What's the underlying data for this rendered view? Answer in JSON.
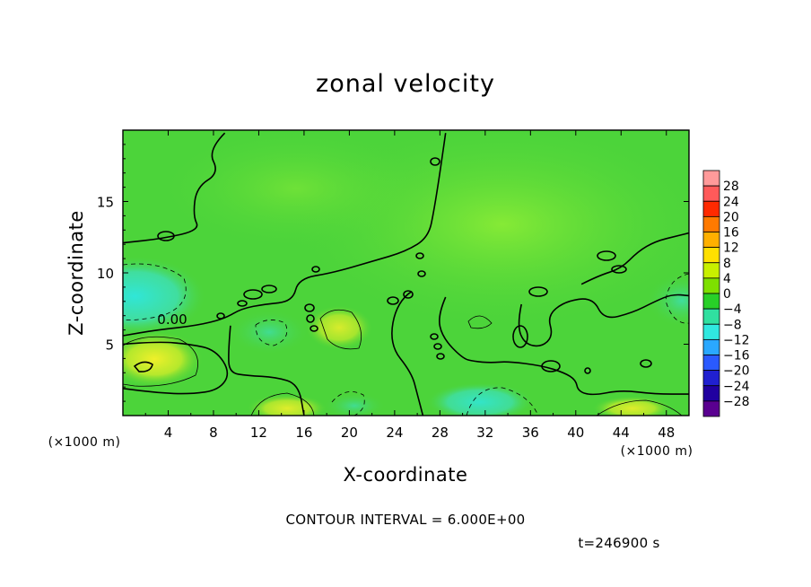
{
  "chart_data": {
    "type": "heatmap",
    "title": "zonal velocity",
    "xlabel": "X-coordinate",
    "ylabel": "Z-coordinate",
    "x_unit_label": "(×1000 m)",
    "y_unit_label": "(×1000 m)",
    "xlim": [
      0,
      50
    ],
    "ylim": [
      0,
      20
    ],
    "x_ticks": [
      4,
      8,
      12,
      16,
      20,
      24,
      28,
      32,
      36,
      40,
      44,
      48
    ],
    "y_ticks": [
      5,
      10,
      15
    ],
    "contour_interval_text": "CONTOUR INTERVAL = 6.000E+00",
    "zero_contour_label": "0.00",
    "time_text": "t=246900 s",
    "colorbar": {
      "levels": [
        28,
        24,
        20,
        16,
        12,
        8,
        4,
        0,
        -4,
        -8,
        -12,
        -16,
        -20,
        -24,
        -28
      ],
      "colors": [
        "#ff9a9a",
        "#ff5a5a",
        "#ff2a00",
        "#ff7a00",
        "#ffb000",
        "#ffe000",
        "#c8f000",
        "#7ee000",
        "#28d028",
        "#30e0a0",
        "#30e8e0",
        "#2aa8ff",
        "#2a5aff",
        "#2020d0",
        "#2000a0",
        "#5a0090"
      ]
    },
    "field_description_colors": {
      "background_green": "#4cd43a",
      "upper_right_lightgreen": "#7ce838",
      "cyan_negative": "#38d8c8",
      "yellow_positive": "#e6e82a"
    },
    "zero_contours": [
      {
        "name": "upper-left-boundary",
        "points": [
          [
            9,
            19.8
          ],
          [
            7.5,
            18.6
          ],
          [
            8.5,
            17.0
          ],
          [
            6.5,
            16.0
          ],
          [
            6.2,
            14.0
          ],
          [
            6.8,
            13.0
          ],
          [
            3.5,
            12.4
          ],
          [
            0,
            12.1
          ]
        ]
      },
      {
        "name": "central-divide",
        "points": [
          [
            28.5,
            19.8
          ],
          [
            28.0,
            17.0
          ],
          [
            27.5,
            14.5
          ],
          [
            27.0,
            12.5
          ],
          [
            25.0,
            11.5
          ],
          [
            22.0,
            10.8
          ],
          [
            18.5,
            10.0
          ],
          [
            15.5,
            9.6
          ],
          [
            15.0,
            8.0
          ],
          [
            12.5,
            7.8
          ],
          [
            10.5,
            7.5
          ],
          [
            9.0,
            6.8
          ],
          [
            6.5,
            6.3
          ],
          [
            3.0,
            6.0
          ],
          [
            0,
            5.6
          ]
        ]
      },
      {
        "name": "lower-left-cell",
        "points": [
          [
            0,
            5.0
          ],
          [
            3.0,
            5.2
          ],
          [
            6.0,
            5.0
          ],
          [
            8.2,
            4.6
          ],
          [
            9.5,
            3.0
          ],
          [
            8.5,
            1.8
          ],
          [
            6.0,
            1.5
          ],
          [
            3.0,
            1.6
          ],
          [
            0,
            1.9
          ]
        ]
      },
      {
        "name": "left-lower-wall",
        "points": [
          [
            9.5,
            6.3
          ],
          [
            9.3,
            4.5
          ],
          [
            9.4,
            3.0
          ],
          [
            11.0,
            2.8
          ],
          [
            13.5,
            2.7
          ],
          [
            15.5,
            2.2
          ],
          [
            16.0,
            0
          ]
        ]
      },
      {
        "name": "middle-tongue",
        "points": [
          [
            25.5,
            8.7
          ],
          [
            24.2,
            8.0
          ],
          [
            23.5,
            5.0
          ],
          [
            25.5,
            3.0
          ],
          [
            26.0,
            1.5
          ],
          [
            26.5,
            0
          ]
        ]
      },
      {
        "name": "right-bubble",
        "points": [
          [
            28.5,
            8.3
          ],
          [
            27.8,
            7.0
          ],
          [
            28.2,
            5.5
          ],
          [
            30.0,
            4.0
          ],
          [
            31.0,
            3.8
          ],
          [
            32.5,
            3.7
          ],
          [
            34.0,
            3.8
          ],
          [
            37.0,
            3.5
          ],
          [
            39.0,
            3.0
          ],
          [
            40.0,
            2.5
          ],
          [
            40.2,
            1.7
          ],
          [
            41.5,
            1.4
          ],
          [
            44.0,
            1.8
          ],
          [
            47.0,
            1.5
          ],
          [
            50,
            1.5
          ]
        ]
      },
      {
        "name": "right-tongue",
        "points": [
          [
            35.2,
            7.8
          ],
          [
            34.8,
            6.3
          ],
          [
            35.5,
            5.0
          ],
          [
            37.0,
            4.8
          ],
          [
            38.0,
            5.6
          ],
          [
            37.5,
            7.0
          ],
          [
            39.0,
            8.0
          ],
          [
            41.5,
            8.3
          ],
          [
            42.5,
            6.7
          ],
          [
            45.0,
            7.2
          ],
          [
            47.0,
            8.0
          ],
          [
            48.5,
            8.5
          ],
          [
            50,
            8.4
          ]
        ]
      },
      {
        "name": "right-upper-ridge",
        "points": [
          [
            40.5,
            9.2
          ],
          [
            42.0,
            9.8
          ],
          [
            44.0,
            10.3
          ],
          [
            45.5,
            11.5
          ],
          [
            47.0,
            12.2
          ],
          [
            49.0,
            12.6
          ],
          [
            50,
            12.8
          ]
        ]
      }
    ]
  }
}
